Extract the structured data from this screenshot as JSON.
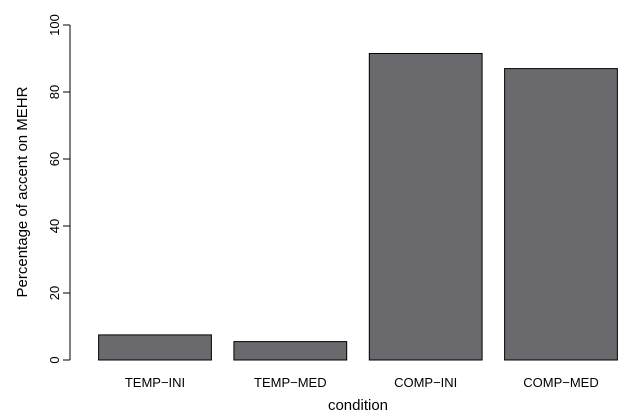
{
  "chart_data": {
    "type": "bar",
    "categories": [
      "TEMP−INI",
      "TEMP−MED",
      "COMP−INI",
      "COMP−MED"
    ],
    "values": [
      7.5,
      5.5,
      91.5,
      87.0
    ],
    "title": "",
    "xlabel": "condition",
    "ylabel": "Percentage of accent on MEHR",
    "ylim": [
      0,
      100
    ],
    "yticks": [
      0,
      20,
      40,
      60,
      80,
      100
    ],
    "bar_color": "#6a6a6e",
    "grid": false
  }
}
